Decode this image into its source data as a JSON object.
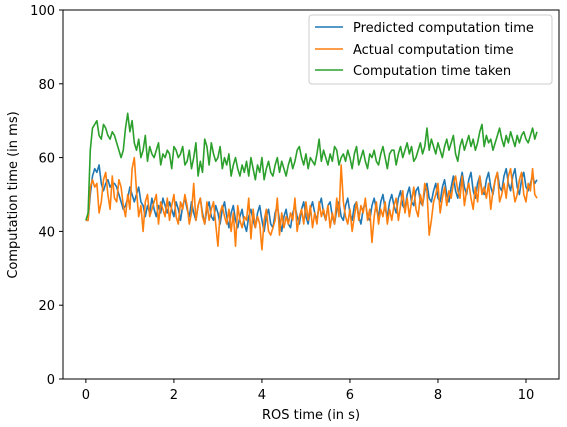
{
  "chart_data": {
    "type": "line",
    "title": "",
    "xlabel": "ROS time (in s)",
    "ylabel": "Computation time (in ms)",
    "xlim": [
      -0.52,
      10.75
    ],
    "ylim": [
      0,
      100
    ],
    "xticks": [
      0,
      2,
      4,
      6,
      8,
      10
    ],
    "yticks": [
      0,
      20,
      40,
      60,
      80,
      100
    ],
    "grid": false,
    "legend_position": "top-right",
    "x": [
      0,
      0.05,
      0.1,
      0.15,
      0.2,
      0.25,
      0.3,
      0.35,
      0.4,
      0.45,
      0.5,
      0.55,
      0.6,
      0.65,
      0.7,
      0.75,
      0.8,
      0.85,
      0.9,
      0.95,
      1.0,
      1.05,
      1.1,
      1.15,
      1.2,
      1.25,
      1.3,
      1.35,
      1.4,
      1.45,
      1.5,
      1.55,
      1.6,
      1.65,
      1.7,
      1.75,
      1.8,
      1.85,
      1.9,
      1.95,
      2.0,
      2.05,
      2.1,
      2.15,
      2.2,
      2.25,
      2.3,
      2.35,
      2.4,
      2.45,
      2.5,
      2.55,
      2.6,
      2.65,
      2.7,
      2.75,
      2.8,
      2.85,
      2.9,
      2.95,
      3.0,
      3.05,
      3.1,
      3.15,
      3.2,
      3.25,
      3.3,
      3.35,
      3.4,
      3.45,
      3.5,
      3.55,
      3.6,
      3.65,
      3.7,
      3.75,
      3.8,
      3.85,
      3.9,
      3.95,
      4.0,
      4.05,
      4.1,
      4.15,
      4.2,
      4.25,
      4.3,
      4.35,
      4.4,
      4.45,
      4.5,
      4.55,
      4.6,
      4.65,
      4.7,
      4.75,
      4.8,
      4.85,
      4.9,
      4.95,
      5.0,
      5.05,
      5.1,
      5.15,
      5.2,
      5.25,
      5.3,
      5.35,
      5.4,
      5.45,
      5.5,
      5.55,
      5.6,
      5.65,
      5.7,
      5.75,
      5.8,
      5.85,
      5.9,
      5.95,
      6.0,
      6.05,
      6.1,
      6.15,
      6.2,
      6.25,
      6.3,
      6.35,
      6.4,
      6.45,
      6.5,
      6.55,
      6.6,
      6.65,
      6.7,
      6.75,
      6.8,
      6.85,
      6.9,
      6.95,
      7.0,
      7.05,
      7.1,
      7.15,
      7.2,
      7.25,
      7.3,
      7.35,
      7.4,
      7.45,
      7.5,
      7.55,
      7.6,
      7.65,
      7.7,
      7.75,
      7.8,
      7.85,
      7.9,
      7.95,
      8.0,
      8.05,
      8.1,
      8.15,
      8.2,
      8.25,
      8.3,
      8.35,
      8.4,
      8.45,
      8.5,
      8.55,
      8.6,
      8.65,
      8.7,
      8.75,
      8.8,
      8.85,
      8.9,
      8.95,
      9.0,
      9.05,
      9.1,
      9.15,
      9.2,
      9.25,
      9.3,
      9.35,
      9.4,
      9.45,
      9.5,
      9.55,
      9.6,
      9.65,
      9.7,
      9.75,
      9.8,
      9.85,
      9.9,
      9.95,
      10.0,
      10.05,
      10.1,
      10.15,
      10.2,
      10.25
    ],
    "series": [
      {
        "name": "Predicted computation time",
        "color": "#1f77b4",
        "values": [
          43,
          43,
          50,
          55,
          57,
          56,
          58,
          53,
          51,
          53,
          54,
          52,
          53,
          53,
          52,
          50,
          48,
          46,
          47,
          49,
          52,
          50,
          48,
          50,
          52,
          48,
          47,
          44,
          47,
          45,
          49,
          46,
          44,
          47,
          45,
          49,
          47,
          45,
          48,
          46,
          44,
          48,
          46,
          43,
          47,
          49,
          46,
          44,
          48,
          45,
          43,
          47,
          49,
          45,
          42,
          46,
          48,
          44,
          43,
          47,
          45,
          42,
          46,
          48,
          44,
          41,
          45,
          47,
          43,
          41,
          44,
          46,
          42,
          40,
          44,
          46,
          43,
          41,
          45,
          47,
          43,
          40,
          44,
          46,
          42,
          41,
          45,
          47,
          43,
          40,
          44,
          46,
          42,
          41,
          45,
          47,
          44,
          42,
          46,
          48,
          44,
          42,
          46,
          48,
          45,
          43,
          47,
          49,
          45,
          43,
          47,
          48,
          44,
          42,
          46,
          48,
          44,
          43,
          47,
          49,
          45,
          43,
          47,
          48,
          44,
          42,
          46,
          48,
          44,
          43,
          47,
          49,
          46,
          44,
          48,
          50,
          46,
          44,
          48,
          50,
          47,
          45,
          49,
          51,
          47,
          46,
          50,
          52,
          48,
          47,
          51,
          52,
          48,
          47,
          51,
          53,
          49,
          48,
          51,
          53,
          49,
          48,
          52,
          54,
          50,
          48,
          52,
          55,
          51,
          49,
          53,
          56,
          52,
          50,
          54,
          56,
          51,
          49,
          53,
          55,
          51,
          50,
          54,
          56,
          52,
          50,
          54,
          56,
          52,
          51,
          55,
          57,
          53,
          51,
          55,
          57,
          52,
          50,
          54,
          56,
          52,
          51,
          53,
          55,
          53,
          54
        ]
      },
      {
        "name": "Actual computation time",
        "color": "#ff7f0e",
        "values": [
          43,
          43,
          52,
          54,
          52,
          53,
          45,
          48,
          54,
          56,
          50,
          46,
          55,
          49,
          48,
          54,
          52,
          47,
          44,
          50,
          46,
          57,
          60,
          51,
          44,
          47,
          40,
          48,
          50,
          44,
          46,
          48,
          50,
          42,
          48,
          46,
          44,
          49,
          43,
          47,
          50,
          44,
          42,
          48,
          46,
          50,
          47,
          42,
          45,
          53,
          43,
          47,
          49,
          44,
          42,
          48,
          43,
          46,
          48,
          42,
          36,
          45,
          47,
          44,
          42,
          46,
          40,
          45,
          36,
          47,
          43,
          41,
          44,
          43,
          49,
          38,
          46,
          41,
          44,
          42,
          35,
          43,
          46,
          40,
          39,
          41,
          43,
          49,
          39,
          45,
          41,
          44,
          42,
          45,
          43,
          49,
          40,
          44,
          46,
          42,
          48,
          43,
          47,
          41,
          45,
          42,
          48,
          44,
          46,
          43,
          47,
          41,
          45,
          42,
          49,
          44,
          58,
          48,
          44,
          42,
          46,
          40,
          44,
          48,
          43,
          47,
          45,
          49,
          43,
          46,
          37,
          44,
          48,
          42,
          46,
          44,
          48,
          42,
          46,
          43,
          47,
          49,
          43,
          47,
          51,
          45,
          49,
          44,
          48,
          52,
          46,
          44,
          50,
          47,
          53,
          51,
          39,
          43,
          48,
          50,
          53,
          45,
          49,
          52,
          47,
          51,
          49,
          53,
          55,
          51,
          49,
          55,
          47,
          51,
          53,
          49,
          46,
          52,
          48,
          55,
          50,
          52,
          49,
          53,
          46,
          51,
          54,
          56,
          48,
          50,
          53,
          49,
          55,
          57,
          52,
          48,
          50,
          54,
          56,
          50,
          48,
          53,
          51,
          57,
          50,
          49
        ]
      },
      {
        "name": "Computation time taken",
        "color": "#2ca02c",
        "values": [
          43,
          45,
          62,
          68,
          69,
          70,
          66,
          65,
          69,
          68,
          66,
          65,
          67,
          66,
          64,
          62,
          60,
          62,
          68,
          72,
          67,
          70,
          64,
          62,
          65,
          60,
          62,
          66,
          59,
          63,
          61,
          60,
          62,
          64,
          58,
          61,
          60,
          62,
          61,
          57,
          63,
          62,
          60,
          61,
          63,
          58,
          59,
          62,
          57,
          60,
          64,
          55,
          59,
          56,
          65,
          63,
          58,
          64,
          61,
          59,
          60,
          63,
          57,
          60,
          58,
          61,
          55,
          58,
          60,
          57,
          55,
          58,
          56,
          59,
          55,
          60,
          57,
          54,
          58,
          56,
          60,
          54,
          57,
          59,
          56,
          55,
          58,
          60,
          56,
          59,
          57,
          55,
          58,
          60,
          57,
          59,
          62,
          63,
          60,
          58,
          61,
          57,
          60,
          59,
          58,
          61,
          65,
          59,
          62,
          60,
          58,
          61,
          59,
          63,
          62,
          58,
          60,
          61,
          59,
          62,
          60,
          57,
          61,
          63,
          58,
          60,
          62,
          59,
          57,
          61,
          60,
          62,
          59,
          58,
          61,
          63,
          60,
          57,
          61,
          62,
          62,
          58,
          61,
          63,
          60,
          62,
          64,
          61,
          63,
          59,
          60,
          62,
          64,
          61,
          63,
          68,
          62,
          65,
          63,
          61,
          64,
          62,
          60,
          63,
          65,
          62,
          64,
          66,
          61,
          59,
          63,
          65,
          62,
          64,
          66,
          63,
          65,
          62,
          64,
          67,
          69,
          63,
          66,
          64,
          65,
          62,
          64,
          66,
          68,
          65,
          63,
          66,
          64,
          67,
          65,
          63,
          66,
          64,
          66,
          67,
          65,
          64,
          66,
          68,
          65,
          67
        ]
      }
    ]
  }
}
